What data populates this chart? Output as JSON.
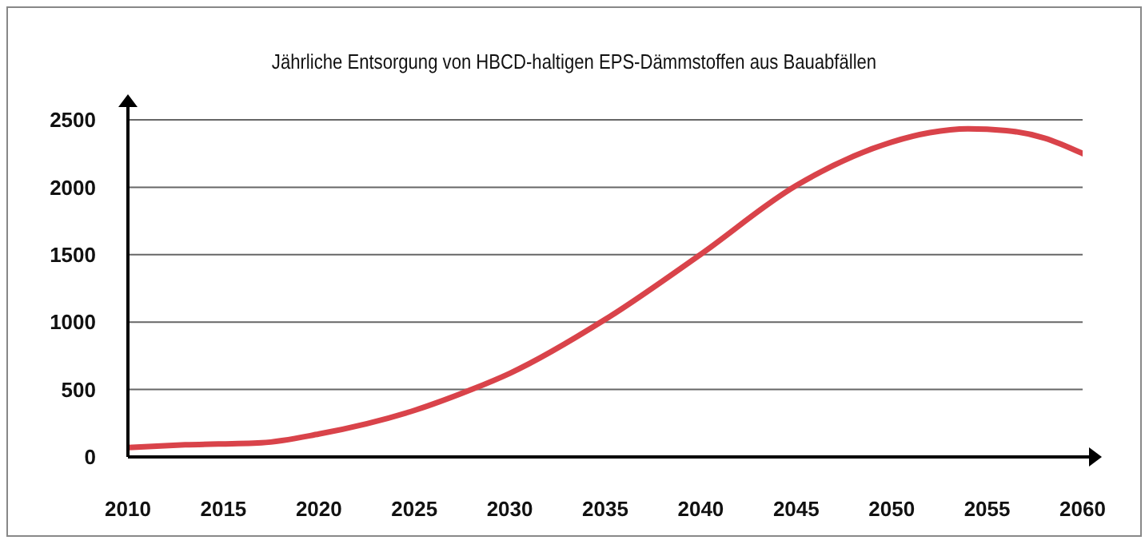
{
  "chart_data": {
    "type": "line",
    "title": "Jährliche Entsorgung von HBCD-haltigen EPS-Dämmstoffen aus Bauabfällen",
    "x": [
      2010,
      2013,
      2017,
      2020,
      2025,
      2028,
      2030,
      2035,
      2040,
      2045,
      2050,
      2052,
      2054,
      2056,
      2058,
      2060
    ],
    "series": [
      {
        "color": "#d9434a",
        "values": [
          70,
          90,
          105,
          170,
          345,
          500,
          620,
          1020,
          1503,
          2013,
          2335,
          2405,
          2433,
          2420,
          2365,
          2250
        ]
      }
    ],
    "xlim": [
      2010,
      2060
    ],
    "xticks": [
      2010,
      2015,
      2020,
      2025,
      2030,
      2035,
      2040,
      2045,
      2050,
      2055,
      2060
    ],
    "ylim": [
      0,
      2500
    ],
    "yticks": [
      0,
      500,
      1000,
      1500,
      2000,
      2500
    ],
    "grid": "y"
  }
}
